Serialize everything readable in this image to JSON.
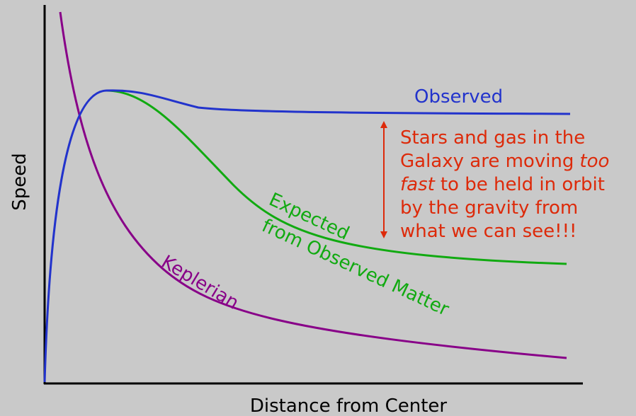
{
  "axes": {
    "y_label": "Speed",
    "x_label": "Distance from Center"
  },
  "curves": [
    {
      "name": "observed",
      "label": "Observed"
    },
    {
      "name": "expected",
      "label_lines": [
        "Expected",
        "from Observed Matter"
      ]
    },
    {
      "name": "keplerian",
      "label": "Keplerian"
    }
  ],
  "annotation": {
    "lines": [
      [
        {
          "text": "Stars and gas in the"
        }
      ],
      [
        {
          "text": "Galaxy are moving"
        },
        {
          "text": "too",
          "italic": true
        }
      ],
      [
        {
          "text": "fast",
          "italic": true
        },
        {
          "text": "to be held in orbit"
        }
      ],
      [
        {
          "text": "by the gravity from"
        }
      ],
      [
        {
          "text": "what we can see!!!"
        }
      ]
    ]
  }
}
